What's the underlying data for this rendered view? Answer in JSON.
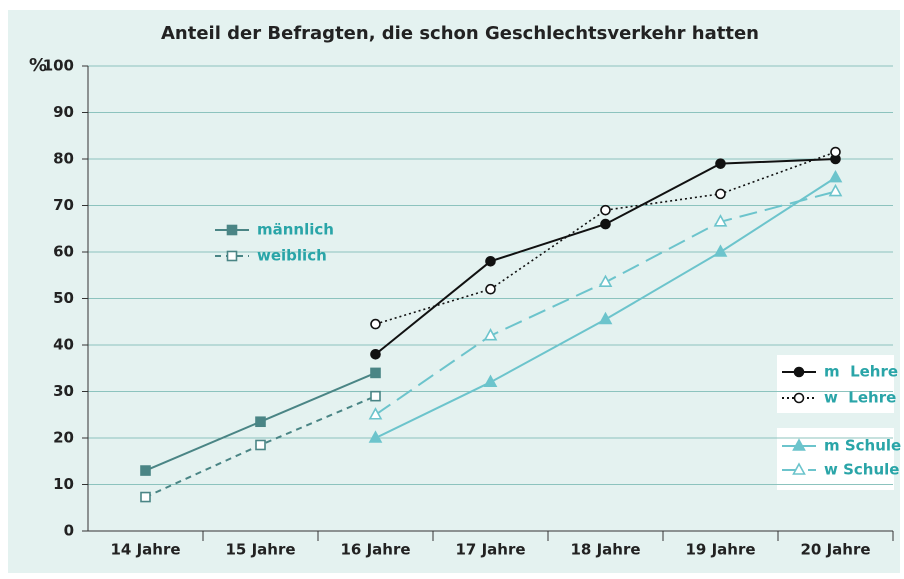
{
  "chart_data": {
    "type": "line",
    "title": "Anteil der Befragten, die schon Geschlechtsverkehr hatten",
    "y_label": "%",
    "categories": [
      "14 Jahre",
      "15 Jahre",
      "16 Jahre",
      "17 Jahre",
      "18 Jahre",
      "19 Jahre",
      "20 Jahre"
    ],
    "series": [
      {
        "name": "männlich",
        "color": "#4a8585",
        "dash": "solid",
        "marker": "square",
        "filled": true,
        "values": [
          13,
          23.5,
          34,
          null,
          null,
          null,
          null
        ]
      },
      {
        "name": "weiblich",
        "color": "#4a8585",
        "dash": "dashed",
        "marker": "square",
        "filled": false,
        "values": [
          7.3,
          18.5,
          29,
          null,
          null,
          null,
          null
        ]
      },
      {
        "name": "m  Lehre",
        "color": "#111111",
        "dash": "solid",
        "marker": "circle",
        "filled": true,
        "values": [
          null,
          null,
          38,
          58,
          66,
          79,
          80
        ]
      },
      {
        "name": "w  Lehre",
        "color": "#111111",
        "dash": "dotted",
        "marker": "circle",
        "filled": false,
        "values": [
          null,
          null,
          44.5,
          52,
          69,
          72.5,
          81.5
        ]
      },
      {
        "name": "m Schule",
        "color": "#6cc4cc",
        "dash": "solid",
        "marker": "triangle",
        "filled": true,
        "values": [
          null,
          null,
          20,
          32,
          45.5,
          60,
          76
        ]
      },
      {
        "name": "w Schule",
        "color": "#6cc4cc",
        "dash": "longdash",
        "marker": "triangle",
        "filled": false,
        "values": [
          null,
          null,
          25,
          42,
          53.5,
          66.5,
          73
        ]
      }
    ],
    "ylim": [
      0,
      100
    ],
    "yticks": [
      0,
      10,
      20,
      30,
      40,
      50,
      60,
      70,
      80,
      90,
      100
    ],
    "grid": true
  }
}
